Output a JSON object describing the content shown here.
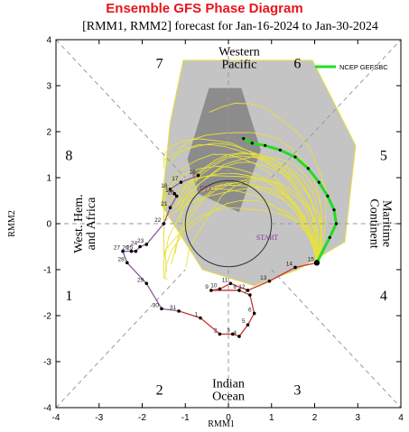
{
  "header": {
    "title": "Ensemble GFS Phase Diagram",
    "subtitle": "[RMM1, RMM2] forecast for Jan-16-2024 to Jan-30-2024"
  },
  "chart_data": {
    "type": "line",
    "xlabel": "RMM1",
    "ylabel": "RMM2",
    "xlim": [
      -4,
      4
    ],
    "ylim": [
      -4,
      4
    ],
    "xticks": [
      "-4",
      "-3",
      "-2",
      "-1",
      "0",
      "1",
      "2",
      "3",
      "4"
    ],
    "yticks": [
      "-4",
      "-3",
      "-2",
      "-1",
      "0",
      "1",
      "2",
      "3",
      "4"
    ],
    "phases": [
      {
        "label": "1",
        "x": -3.7,
        "y": -1.55
      },
      {
        "label": "2",
        "x": -1.6,
        "y": -3.6
      },
      {
        "label": "3",
        "x": 1.6,
        "y": -3.6
      },
      {
        "label": "4",
        "x": 3.6,
        "y": -1.55
      },
      {
        "label": "5",
        "x": 3.6,
        "y": 1.5
      },
      {
        "label": "6",
        "x": 1.6,
        "y": 3.5
      },
      {
        "label": "7",
        "x": -1.6,
        "y": 3.5
      },
      {
        "label": "8",
        "x": -3.7,
        "y": 1.5
      }
    ],
    "regions": [
      {
        "lines": [
          "Western",
          "Pacific"
        ],
        "x": 0.25,
        "y": 3.62
      },
      {
        "lines": [
          "West. Hem.",
          "and Africa"
        ],
        "x": -3.35,
        "y": 0.0,
        "rotate": -90
      },
      {
        "lines": [
          "Indian",
          "Ocean"
        ],
        "x": 0.0,
        "y": -3.6
      },
      {
        "lines": [
          "Maritime",
          "Continent"
        ],
        "x": 3.55,
        "y": 0.0,
        "rotate": 90
      }
    ],
    "legend": {
      "label": "NCEP GEFSBC",
      "color": "#22dd22",
      "position": "top-right"
    },
    "observed": {
      "color": "#8a5a9a",
      "labels": [
        {
          "text": "START",
          "x": 0.9,
          "y": -0.35,
          "color": "#7a3a9a"
        },
        {
          "text": "DEC",
          "x": -0.5,
          "y": 0.72,
          "color": "#7a3a9a"
        }
      ],
      "points": [
        {
          "day": "1",
          "x": -0.65,
          "y": -2.05,
          "color": "#cc3333"
        },
        {
          "day": "2",
          "x": -0.2,
          "y": -2.4,
          "color": "#cc3333"
        },
        {
          "day": "3",
          "x": 0.1,
          "y": -2.4,
          "color": "#cc3333"
        },
        {
          "day": "4",
          "x": 0.25,
          "y": -2.45,
          "color": "#cc3333"
        },
        {
          "day": "5",
          "x": 0.45,
          "y": -2.2,
          "color": "#cc3333"
        },
        {
          "day": "6",
          "x": 0.6,
          "y": -1.95,
          "color": "#cc3333"
        },
        {
          "day": "7",
          "x": 0.5,
          "y": -1.55,
          "color": "#cc3333"
        },
        {
          "day": "8",
          "x": 0.25,
          "y": -1.45,
          "color": "#cc3333"
        },
        {
          "day": "9",
          "x": -0.4,
          "y": -1.45,
          "color": "#cc3333"
        },
        {
          "day": "10",
          "x": -0.2,
          "y": -1.42,
          "color": "#cc3333"
        },
        {
          "day": "11",
          "x": 0.05,
          "y": -1.3,
          "color": "#cc3333"
        },
        {
          "day": "12",
          "x": 0.45,
          "y": -1.45,
          "color": "#cc3333"
        },
        {
          "day": "13",
          "x": 0.95,
          "y": -1.25,
          "color": "#cc3333"
        },
        {
          "day": "14",
          "x": 1.55,
          "y": -0.95,
          "color": "#cc3333"
        },
        {
          "day": "15",
          "x": 2.05,
          "y": -0.85,
          "color": "#cc3333"
        },
        {
          "day": "16",
          "x": -0.7,
          "y": 1.05,
          "color": "#8a5a9a"
        },
        {
          "day": "17",
          "x": -1.1,
          "y": 0.9,
          "color": "#8a5a9a"
        },
        {
          "day": "18",
          "x": -1.35,
          "y": 0.75,
          "color": "#8a5a9a"
        },
        {
          "day": "19",
          "x": -1.25,
          "y": 0.65,
          "color": "#8a5a9a"
        },
        {
          "day": "20",
          "x": -1.2,
          "y": 0.6,
          "color": "#8a5a9a"
        },
        {
          "day": "21",
          "x": -1.35,
          "y": 0.35,
          "color": "#8a5a9a"
        },
        {
          "day": "22",
          "x": -1.5,
          "y": 0.0,
          "color": "#8a5a9a"
        },
        {
          "day": "23",
          "x": -1.9,
          "y": -0.45,
          "color": "#8a5a9a"
        },
        {
          "day": "24",
          "x": -2.05,
          "y": -0.5,
          "color": "#8a5a9a"
        },
        {
          "day": "25",
          "x": -2.15,
          "y": -0.6,
          "color": "#8a5a9a"
        },
        {
          "day": "26",
          "x": -2.25,
          "y": -0.6,
          "color": "#8a5a9a"
        },
        {
          "day": "27",
          "x": -2.45,
          "y": -0.6,
          "color": "#8a5a9a"
        },
        {
          "day": "28",
          "x": -2.35,
          "y": -0.85,
          "color": "#8a5a9a"
        },
        {
          "day": "29",
          "x": -1.9,
          "y": -1.3,
          "color": "#8a5a9a"
        },
        {
          "day": "30",
          "x": -1.55,
          "y": -1.85,
          "color": "#8a5a9a"
        },
        {
          "day": "31",
          "x": -1.15,
          "y": -1.9,
          "color": "#8a5a9a"
        }
      ]
    },
    "forecast_mean": {
      "color": "#22dd22",
      "points": [
        {
          "x": 2.05,
          "y": -0.85
        },
        {
          "x": 2.35,
          "y": -0.3
        },
        {
          "x": 2.5,
          "y": 0.0
        },
        {
          "x": 2.45,
          "y": 0.3
        },
        {
          "x": 2.3,
          "y": 0.6
        },
        {
          "x": 2.1,
          "y": 0.9
        },
        {
          "x": 1.85,
          "y": 1.2
        },
        {
          "x": 1.55,
          "y": 1.45
        },
        {
          "x": 1.2,
          "y": 1.6
        },
        {
          "x": 0.85,
          "y": 1.7
        },
        {
          "x": 0.55,
          "y": 1.75
        },
        {
          "x": 0.35,
          "y": 1.85
        }
      ]
    },
    "shading": {
      "outer": [
        [
          -1.05,
          3.55
        ],
        [
          1.95,
          3.55
        ],
        [
          2.95,
          1.7
        ],
        [
          2.7,
          -0.4
        ],
        [
          1.6,
          -1.0
        ],
        [
          0.6,
          -1.35
        ],
        [
          -0.6,
          -1.0
        ],
        [
          -1.55,
          0.4
        ],
        [
          -1.35,
          2.2
        ]
      ],
      "inner": [
        [
          -0.45,
          2.95
        ],
        [
          0.3,
          2.95
        ],
        [
          0.75,
          1.6
        ],
        [
          0.25,
          0.25
        ],
        [
          -0.7,
          0.65
        ],
        [
          -0.95,
          1.4
        ]
      ]
    }
  }
}
